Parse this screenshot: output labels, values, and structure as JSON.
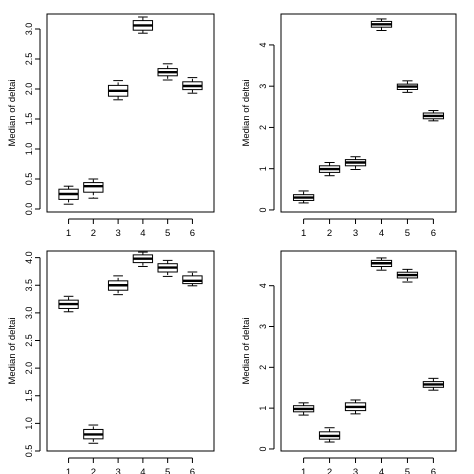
{
  "chart_data": [
    {
      "type": "boxplot",
      "ylabel": "Median of deltai",
      "categories": [
        "1",
        "2",
        "3",
        "4",
        "5",
        "6"
      ],
      "ylim": [
        -0.05,
        3.25
      ],
      "yticks": [
        "0.0",
        "0.5",
        "1.0",
        "1.5",
        "2.0",
        "2.5",
        "3.0"
      ],
      "boxes": [
        {
          "min": 0.08,
          "q1": 0.16,
          "median": 0.25,
          "q3": 0.33,
          "max": 0.38
        },
        {
          "min": 0.18,
          "q1": 0.28,
          "median": 0.38,
          "q3": 0.44,
          "max": 0.5
        },
        {
          "min": 1.82,
          "q1": 1.88,
          "median": 1.97,
          "q3": 2.06,
          "max": 2.14
        },
        {
          "min": 2.93,
          "q1": 2.98,
          "median": 3.06,
          "q3": 3.14,
          "max": 3.2
        },
        {
          "min": 2.15,
          "q1": 2.22,
          "median": 2.28,
          "q3": 2.34,
          "max": 2.42
        },
        {
          "min": 1.93,
          "q1": 1.99,
          "median": 2.05,
          "q3": 2.12,
          "max": 2.19
        }
      ]
    },
    {
      "type": "boxplot",
      "ylabel": "Median of deltai",
      "categories": [
        "1",
        "2",
        "3",
        "4",
        "5",
        "6"
      ],
      "ylim": [
        -0.05,
        4.75
      ],
      "yticks": [
        "0",
        "1",
        "2",
        "3",
        "4"
      ],
      "boxes": [
        {
          "min": 0.17,
          "q1": 0.23,
          "median": 0.3,
          "q3": 0.37,
          "max": 0.46
        },
        {
          "min": 0.83,
          "q1": 0.91,
          "median": 0.99,
          "q3": 1.07,
          "max": 1.15
        },
        {
          "min": 0.98,
          "q1": 1.07,
          "median": 1.15,
          "q3": 1.22,
          "max": 1.29
        },
        {
          "min": 4.35,
          "q1": 4.43,
          "median": 4.5,
          "q3": 4.57,
          "max": 4.63
        },
        {
          "min": 2.85,
          "q1": 2.92,
          "median": 2.99,
          "q3": 3.05,
          "max": 3.13
        },
        {
          "min": 2.16,
          "q1": 2.21,
          "median": 2.28,
          "q3": 2.35,
          "max": 2.41
        }
      ]
    },
    {
      "type": "boxplot",
      "ylabel": "Median of deltai",
      "categories": [
        "1",
        "2",
        "3",
        "4",
        "5",
        "6"
      ],
      "ylim": [
        0.5,
        4.12
      ],
      "yticks": [
        "0.5",
        "1.0",
        "1.5",
        "2.0",
        "2.5",
        "3.0",
        "3.5",
        "4.0"
      ],
      "boxes": [
        {
          "min": 3.02,
          "q1": 3.08,
          "median": 3.16,
          "q3": 3.23,
          "max": 3.3
        },
        {
          "min": 0.64,
          "q1": 0.72,
          "median": 0.8,
          "q3": 0.89,
          "max": 0.97
        },
        {
          "min": 3.33,
          "q1": 3.41,
          "median": 3.5,
          "q3": 3.58,
          "max": 3.67
        },
        {
          "min": 3.84,
          "q1": 3.91,
          "median": 3.98,
          "q3": 4.05,
          "max": 4.1
        },
        {
          "min": 3.66,
          "q1": 3.74,
          "median": 3.82,
          "q3": 3.89,
          "max": 3.95
        },
        {
          "min": 3.49,
          "q1": 3.53,
          "median": 3.58,
          "q3": 3.67,
          "max": 3.74
        }
      ]
    },
    {
      "type": "boxplot",
      "ylabel": "Median of deltai",
      "categories": [
        "1",
        "2",
        "3",
        "4",
        "5",
        "6"
      ],
      "ylim": [
        -0.05,
        4.85
      ],
      "yticks": [
        "0",
        "1",
        "2",
        "3",
        "4"
      ],
      "boxes": [
        {
          "min": 0.83,
          "q1": 0.91,
          "median": 0.98,
          "q3": 1.06,
          "max": 1.13
        },
        {
          "min": 0.17,
          "q1": 0.24,
          "median": 0.32,
          "q3": 0.42,
          "max": 0.52
        },
        {
          "min": 0.86,
          "q1": 0.94,
          "median": 1.03,
          "q3": 1.13,
          "max": 1.2
        },
        {
          "min": 4.38,
          "q1": 4.47,
          "median": 4.55,
          "q3": 4.62,
          "max": 4.68
        },
        {
          "min": 4.09,
          "q1": 4.19,
          "median": 4.26,
          "q3": 4.33,
          "max": 4.4
        },
        {
          "min": 1.44,
          "q1": 1.51,
          "median": 1.58,
          "q3": 1.65,
          "max": 1.73
        }
      ]
    }
  ]
}
